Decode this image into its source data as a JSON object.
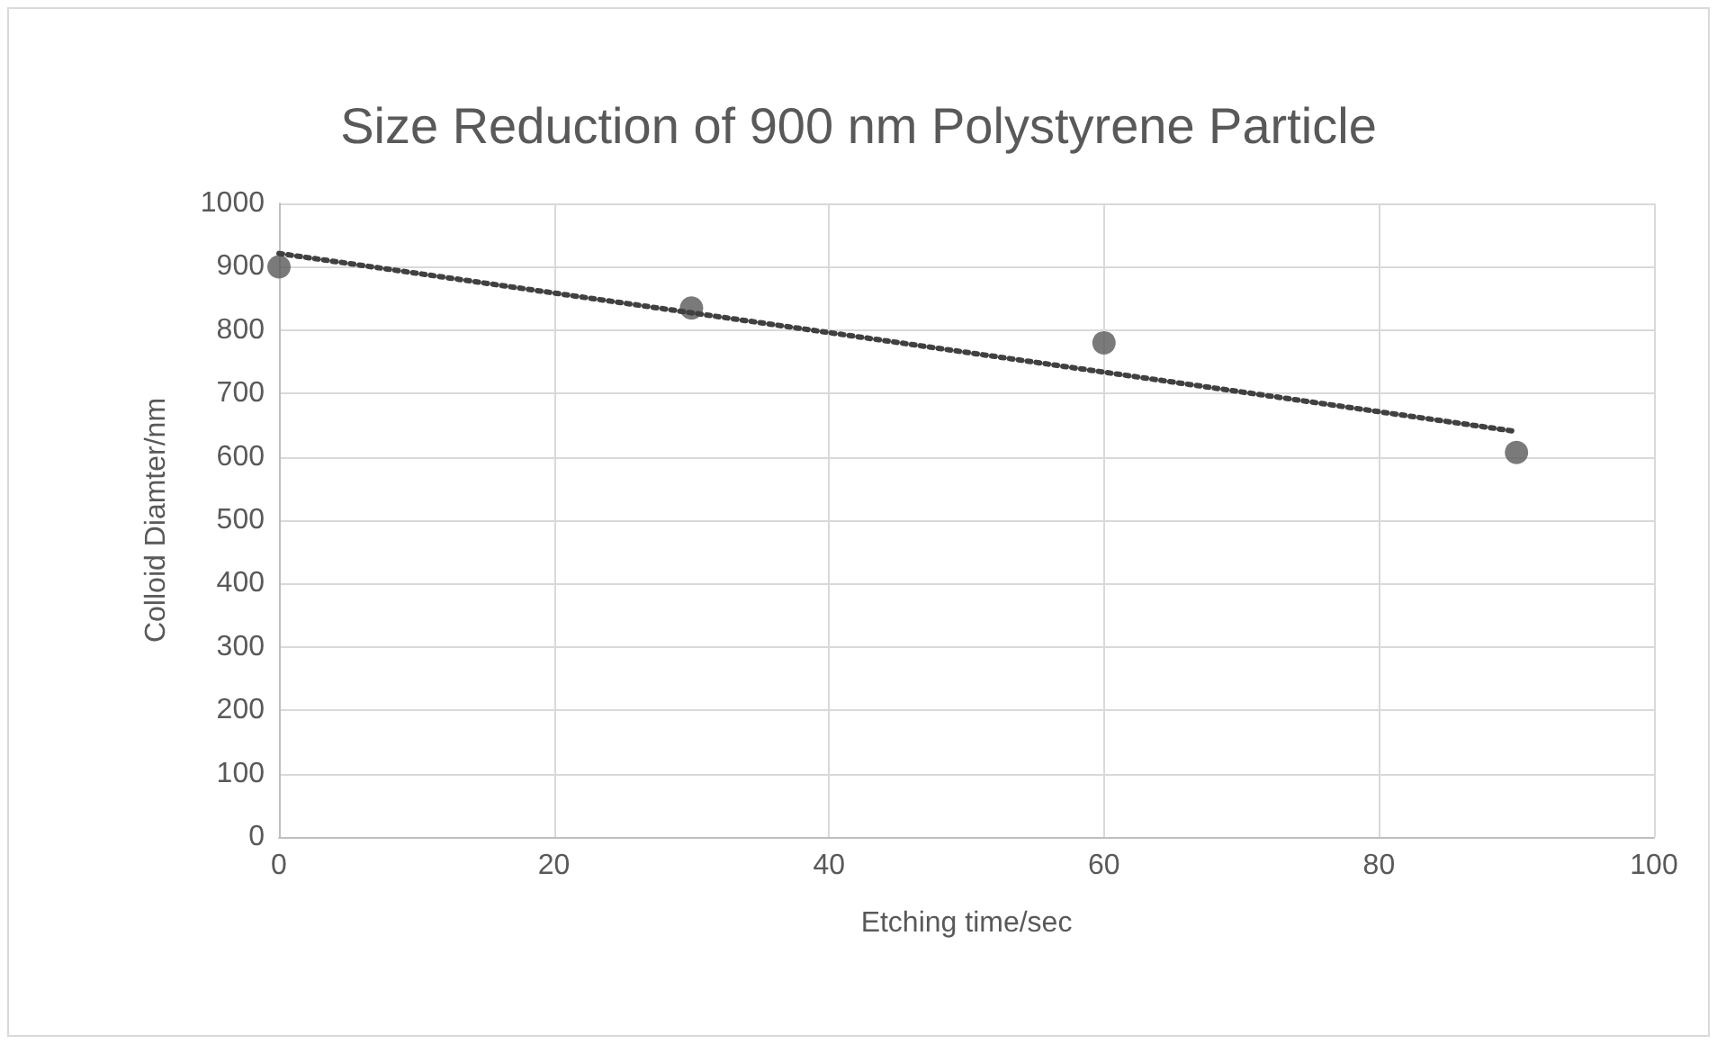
{
  "chart_data": {
    "type": "scatter",
    "title": "Size Reduction of 900 nm Polystyrene Particle",
    "xlabel": "Etching time/sec",
    "ylabel": "Colloid Diamter/nm",
    "x": [
      0,
      30,
      60,
      90
    ],
    "series": [
      {
        "color": "#595959",
        "values": [
          900,
          835,
          780,
          607
        ],
        "marker": "circle"
      },
      {
        "type": "line",
        "color": "#404040",
        "x": [
          0,
          90
        ],
        "values": [
          921,
          640
        ],
        "marker": "none",
        "line_style": "dotted"
      }
    ],
    "xlim": [
      0,
      100
    ],
    "xticks": [
      0,
      20,
      40,
      60,
      80,
      100
    ],
    "ylim": [
      0,
      1000
    ],
    "yticks": [
      0,
      100,
      200,
      300,
      400,
      500,
      600,
      700,
      800,
      900,
      1000
    ],
    "grid": true
  }
}
